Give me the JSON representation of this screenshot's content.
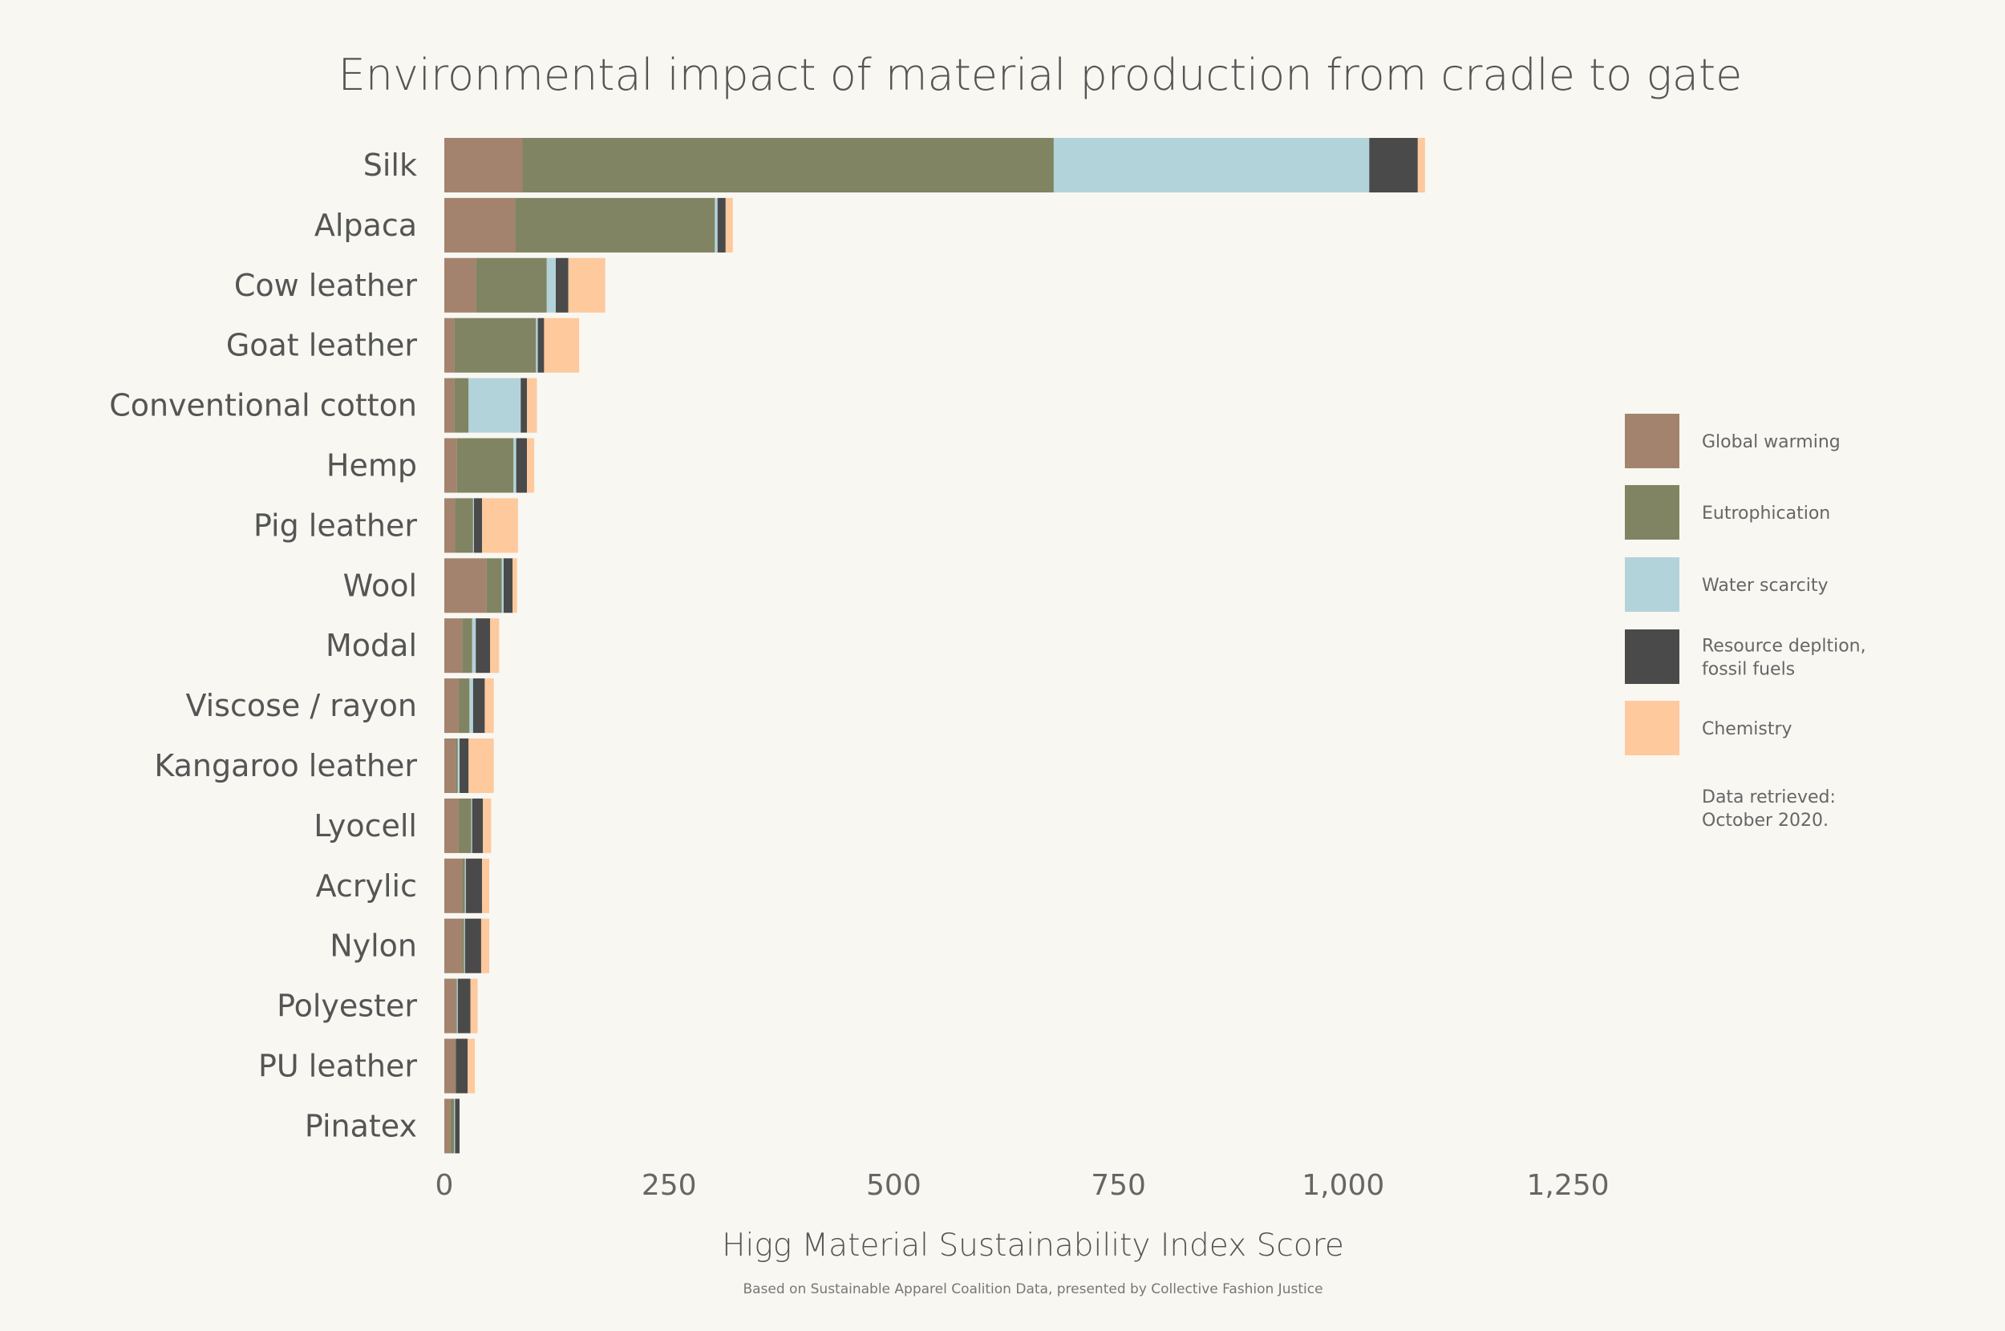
{
  "chart_data": {
    "type": "bar",
    "orientation": "horizontal",
    "stacked": true,
    "title": "Environmental impact of material production from cradle to gate",
    "xlabel": "Higg Material Sustainability Index Score",
    "ylabel": "",
    "xlim": [
      0,
      1250
    ],
    "xticks": [
      0,
      250,
      500,
      750,
      1000,
      1250
    ],
    "xtick_labels": [
      "0",
      "250",
      "500",
      "750",
      "1,000",
      "1,250"
    ],
    "grid": false,
    "legend_position": "right",
    "categories": [
      "Silk",
      "Alpaca",
      "Cow leather",
      "Goat leather",
      "Conventional cotton",
      "Hemp",
      "Pig leather",
      "Wool",
      "Modal",
      "Viscose / rayon",
      "Kangaroo leather",
      "Lyocell",
      "Acrylic",
      "Nylon",
      "Polyester",
      "PU leather",
      "Pinatex"
    ],
    "series": [
      {
        "name": "Global warming",
        "color": "#a3836d",
        "values": [
          87,
          79,
          35,
          11,
          11,
          14,
          12,
          47,
          20,
          16,
          13,
          16,
          20,
          20,
          13,
          12,
          7
        ]
      },
      {
        "name": "Eutrophication",
        "color": "#808462",
        "values": [
          591,
          222,
          79,
          91,
          16,
          63,
          20,
          17,
          11,
          12,
          2,
          14,
          3,
          2,
          1,
          1,
          4
        ]
      },
      {
        "name": "Water scarcity",
        "color": "#b3d3da",
        "values": [
          351,
          3,
          10,
          2,
          58,
          3,
          1,
          2,
          4,
          4,
          2,
          1,
          1,
          1,
          1,
          0,
          1
        ]
      },
      {
        "name": "Resource depltion, fossil fuels",
        "color": "#4a4a4a",
        "values": [
          54,
          9,
          14,
          7,
          7,
          12,
          9,
          10,
          16,
          13,
          10,
          12,
          18,
          18,
          14,
          13,
          5
        ]
      },
      {
        "name": "Chemistry",
        "color": "#fdc99d",
        "values": [
          8,
          8,
          41,
          39,
          11,
          8,
          40,
          5,
          10,
          10,
          28,
          9,
          8,
          9,
          8,
          8,
          0
        ]
      }
    ],
    "annotation": "Data retrieved: October 2020.",
    "source": "Based on Sustainable Apparel Coalition Data, presented by Collective Fashion Justice"
  },
  "legend_labels": [
    [
      "Global warming"
    ],
    [
      "Eutrophication"
    ],
    [
      "Water scarcity"
    ],
    [
      "Resource depltion,",
      "fossil fuels"
    ],
    [
      "Chemistry"
    ]
  ],
  "annotation_lines": [
    "Data retrieved:",
    "October 2020."
  ],
  "colors": {
    "background": "#f8f7f2",
    "text": "#555555"
  }
}
